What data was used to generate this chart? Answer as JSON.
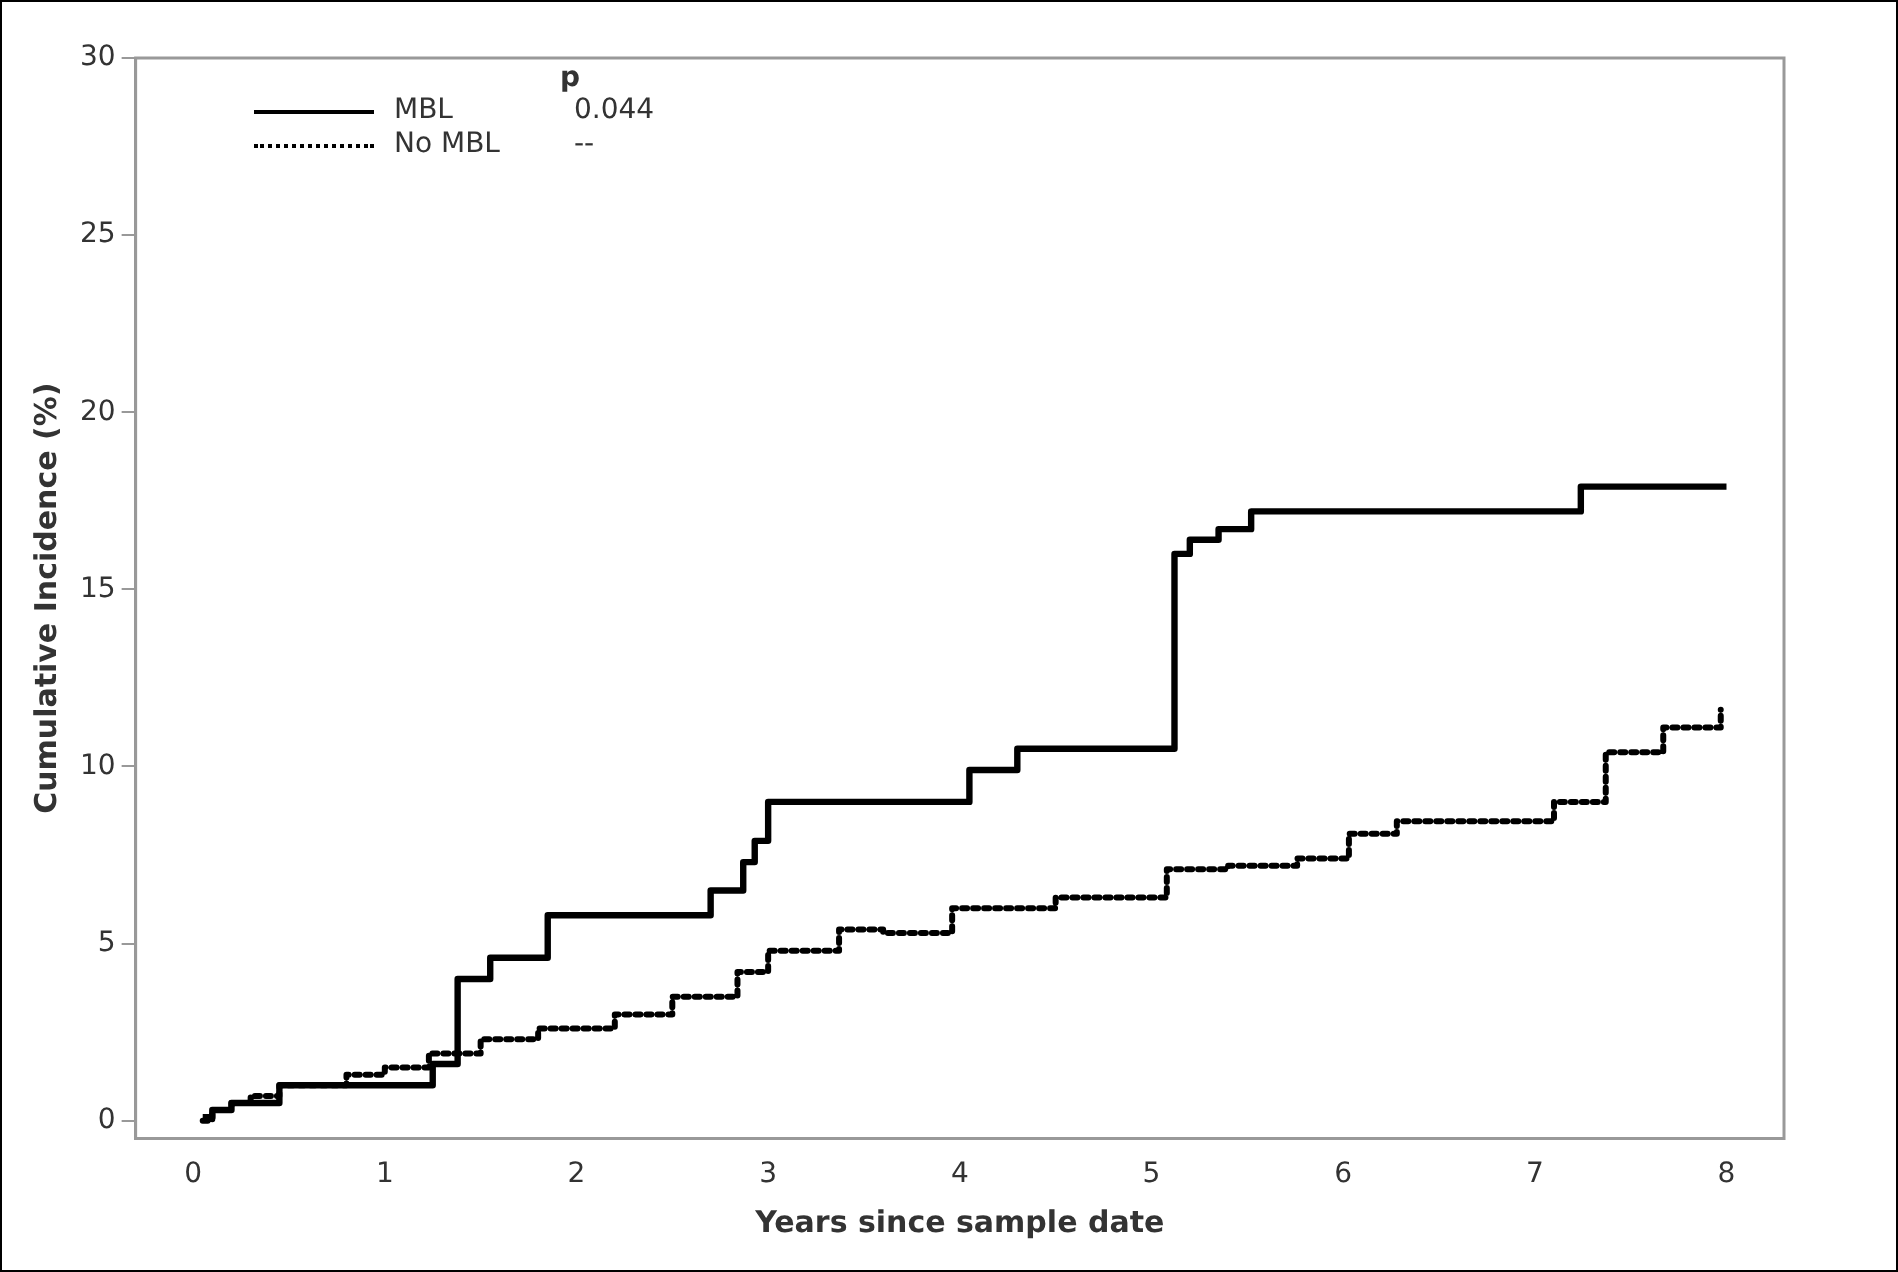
{
  "chart_data": {
    "type": "step",
    "xlabel": "Years since sample date",
    "ylabel": "Cumulative Incidence (%)",
    "xlim": [
      -0.3,
      8.3
    ],
    "xticks": [
      0,
      1,
      2,
      3,
      4,
      5,
      6,
      7,
      8
    ],
    "ylim": [
      -0.5,
      30
    ],
    "yticks": [
      0,
      5,
      10,
      15,
      20,
      25,
      30
    ],
    "grid": false,
    "legend": "top left",
    "annotations": [
      "p",
      "0.044",
      "--"
    ],
    "series": [
      {
        "name": "MBL",
        "color": "#000000",
        "line_style": "solid",
        "x": [
          0.05,
          0.1,
          0.2,
          0.45,
          1.25,
          1.38,
          1.55,
          1.85,
          2.7,
          2.87,
          2.93,
          3.0,
          4.05,
          4.3,
          5.12,
          5.2,
          5.35,
          5.52,
          7.24,
          8.0
        ],
        "values": [
          0.1,
          0.3,
          0.5,
          1.0,
          1.6,
          4.0,
          4.6,
          5.8,
          6.5,
          7.3,
          7.9,
          9.0,
          9.9,
          10.5,
          16.0,
          16.4,
          16.7,
          17.2,
          17.9,
          17.9
        ]
      },
      {
        "name": "No MBL",
        "color": "#000000",
        "line_style": "dotted",
        "x": [
          0.05,
          0.1,
          0.2,
          0.3,
          0.45,
          0.8,
          1.0,
          1.23,
          1.5,
          1.8,
          2.2,
          2.5,
          2.84,
          3.0,
          3.37,
          3.6,
          3.96,
          4.5,
          5.08,
          5.4,
          5.76,
          6.03,
          6.28,
          6.88,
          7.1,
          7.37,
          7.67,
          7.97
        ],
        "values": [
          0.0,
          0.3,
          0.5,
          0.7,
          1.0,
          1.3,
          1.5,
          1.9,
          2.3,
          2.6,
          3.0,
          3.5,
          4.2,
          4.8,
          5.4,
          5.3,
          6.0,
          6.3,
          7.1,
          7.2,
          7.4,
          8.1,
          8.45,
          8.45,
          9.0,
          10.4,
          11.1,
          11.6
        ]
      }
    ]
  }
}
